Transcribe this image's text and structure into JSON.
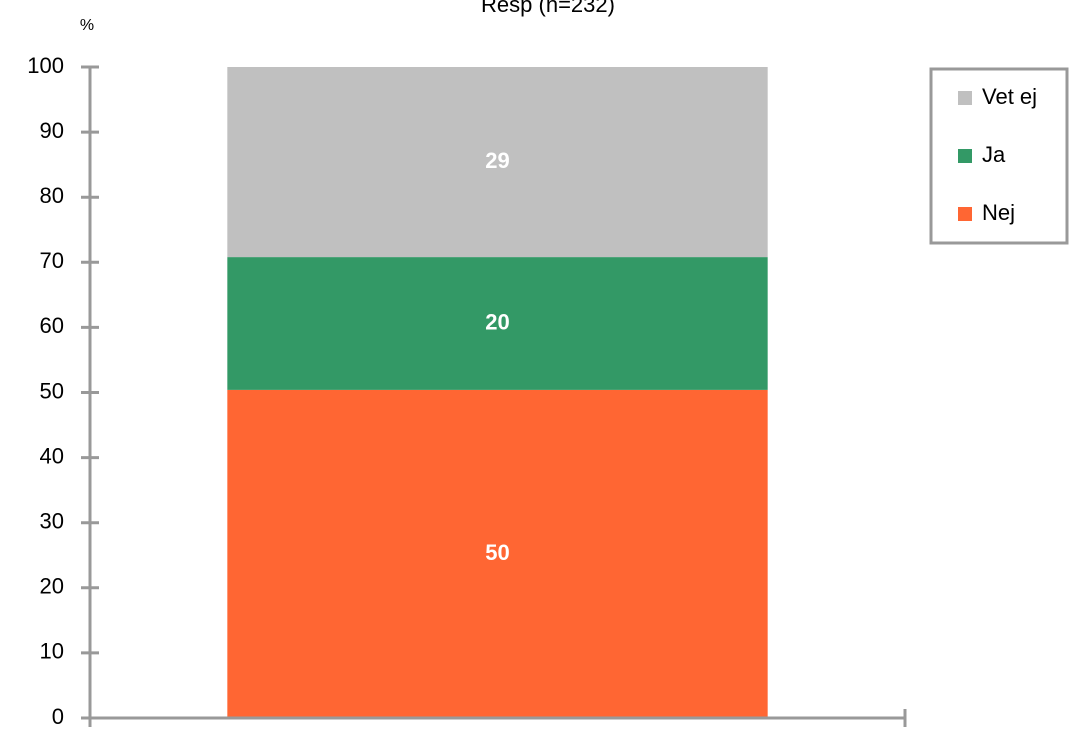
{
  "chart_data": {
    "type": "stacked_bar",
    "title": "Resp (n=232)",
    "y_label": "%",
    "categories": [
      null
    ],
    "series": [
      {
        "name": "Nej",
        "color": "#ff6633",
        "values": [
          50.4
        ],
        "value_labels": [
          "50"
        ]
      },
      {
        "name": "Ja",
        "color": "#339966",
        "values": [
          20.4
        ],
        "value_labels": [
          "20"
        ]
      },
      {
        "name": "Vet ej",
        "color": "#c0c0c0",
        "values": [
          29.2
        ],
        "value_labels": [
          "29"
        ]
      }
    ],
    "ylim": [
      0,
      100
    ],
    "yticks": [
      0,
      10,
      20,
      30,
      40,
      50,
      60,
      70,
      80,
      90,
      100
    ],
    "grid": false,
    "legend": "right"
  }
}
